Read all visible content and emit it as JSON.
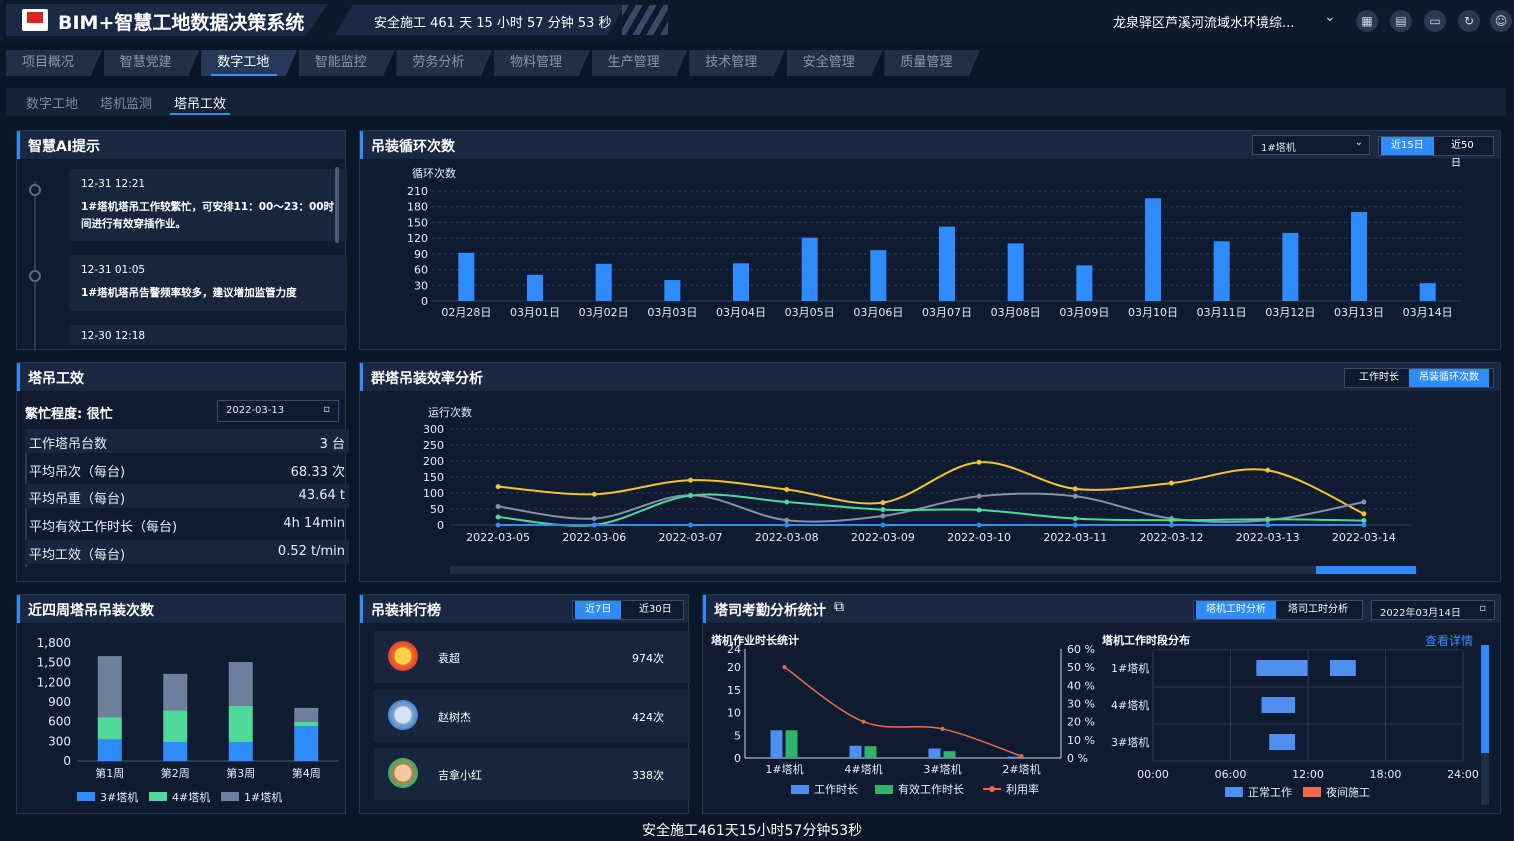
{
  "header": {
    "title": "BIM+智慧工地数据决策系统",
    "safety": "安全施工 461 天 15 小时 57 分钟 53 秒",
    "project": "龙泉驿区芦溪河流域水环境综...",
    "dropdown_icon": "chevron-down-icon",
    "icons": [
      "grid-icon",
      "document-icon",
      "monitor-icon",
      "refresh-icon",
      "user-icon"
    ]
  },
  "nav": {
    "tabs": [
      "项目概况",
      "智慧党建",
      "数字工地",
      "智能监控",
      "劳务分析",
      "物料管理",
      "生产管理",
      "技术管理",
      "安全管理",
      "质量管理"
    ],
    "active": "数字工地"
  },
  "subnav": {
    "tabs": [
      "数字工地",
      "塔机监测",
      "塔吊工效"
    ],
    "active": "塔吊工效"
  },
  "ai": {
    "title": "智慧AI提示",
    "items": [
      {
        "time": "12-31 12:21",
        "text": "1#塔机塔吊工作较繁忙，可安排11：00～23：00时间进行有效穿插作业。"
      },
      {
        "time": "12-31 01:05",
        "text": "1#塔机塔吊告警频率较多，建议增加监管力度"
      },
      {
        "time": "12-30 12:18",
        "text": ""
      }
    ]
  },
  "cycle": {
    "title": "吊装循环次数",
    "select": "1#塔机",
    "btn1": "近15日",
    "btn2": "近50日"
  },
  "efficiency": {
    "title": "塔吊工效",
    "busy_label": "繁忙程度: 很忙",
    "date": "2022-03-13",
    "rows": [
      {
        "k": "工作塔吊台数",
        "v": "3 台"
      },
      {
        "k": "平均吊次（每台)",
        "v": "68.33 次"
      },
      {
        "k": "平均吊重（每台)",
        "v": "43.64 t"
      },
      {
        "k": "平均有效工作时长（每台)",
        "v": "4h 14min"
      },
      {
        "k": "平均工效（每台)",
        "v": "0.52 t/min"
      }
    ]
  },
  "group": {
    "title": "群塔吊装效率分析",
    "btn1": "工作时长",
    "btn2": "吊装循环次数"
  },
  "weekly": {
    "title": "近四周塔吊吊装次数"
  },
  "ranking": {
    "title": "吊装排行榜",
    "btn1": "近7日",
    "btn2": "近30日",
    "items": [
      {
        "name": "袁超",
        "count": "974次"
      },
      {
        "name": "赵树杰",
        "count": "424次"
      },
      {
        "name": "吉拿小红",
        "count": "338次"
      }
    ]
  },
  "attendance": {
    "title": "塔司考勤分析统计",
    "btn1": "塔机工时分析",
    "btn2": "塔司工时分析",
    "date": "2022年03月14日",
    "sub1": "塔机作业时长统计",
    "sub2": "塔机工作时段分布",
    "detail": "查看详情"
  },
  "footer": {
    "safety": "安全施工461天15小时57分钟53秒"
  },
  "chart_data": [
    {
      "type": "bar",
      "id": "cycle",
      "ylabel": "循环次数",
      "ylim": [
        0,
        210
      ],
      "yticks": [
        0,
        30,
        60,
        90,
        120,
        150,
        180,
        210
      ],
      "categories": [
        "02月28日",
        "03月01日",
        "03月02日",
        "03月03日",
        "03月04日",
        "03月05日",
        "03月06日",
        "03月07日",
        "03月08日",
        "03月09日",
        "03月10日",
        "03月11日",
        "03月12日",
        "03月13日",
        "03月14日"
      ],
      "values": [
        92,
        50,
        71,
        40,
        72,
        121,
        97,
        142,
        110,
        68,
        196,
        114,
        130,
        170,
        34
      ],
      "color": "#2f8cff"
    },
    {
      "type": "line",
      "id": "group",
      "ylabel": "运行次数",
      "ylim": [
        0,
        300
      ],
      "yticks": [
        0,
        50,
        100,
        150,
        200,
        250,
        300
      ],
      "categories": [
        "2022-03-05",
        "2022-03-06",
        "2022-03-07",
        "2022-03-08",
        "2022-03-09",
        "2022-03-10",
        "2022-03-11",
        "2022-03-12",
        "2022-03-13",
        "2022-03-14"
      ],
      "series": [
        {
          "values": [
            120,
            96,
            140,
            111,
            70,
            196,
            113,
            131,
            171,
            35
          ],
          "color": "#f5c230"
        },
        {
          "values": [
            58,
            20,
            93,
            15,
            28,
            90,
            90,
            20,
            15,
            72
          ],
          "color": "#8592a6"
        },
        {
          "values": [
            25,
            0,
            92,
            72,
            48,
            47,
            20,
            15,
            18,
            14
          ],
          "color": "#4fd89a"
        },
        {
          "values": [
            0,
            0,
            0,
            0,
            0,
            0,
            0,
            0,
            0,
            0
          ],
          "color": "#2f8cff"
        }
      ]
    },
    {
      "type": "bar",
      "id": "weekly",
      "stacked": true,
      "ylim": [
        0,
        1800
      ],
      "yticks": [
        0,
        300,
        600,
        900,
        1200,
        1500,
        1800
      ],
      "categories": [
        "第1周",
        "第2周",
        "第3周",
        "第4周"
      ],
      "series": [
        {
          "name": "3#塔机",
          "values": [
            330,
            290,
            290,
            530
          ],
          "color": "#2f8cff"
        },
        {
          "name": "4#塔机",
          "values": [
            340,
            480,
            550,
            70
          ],
          "color": "#4fd89a"
        },
        {
          "name": "1#塔机",
          "values": [
            930,
            560,
            670,
            210
          ],
          "color": "#6e809d"
        }
      ]
    },
    {
      "type": "bar",
      "id": "attendance",
      "ylim": [
        0,
        24
      ],
      "yticks": [
        0,
        5,
        10,
        15,
        20,
        24
      ],
      "y2ticks": [
        "0 %",
        "10 %",
        "20 %",
        "30 %",
        "40 %",
        "50 %",
        "60 %"
      ],
      "categories": [
        "1#塔机",
        "4#塔机",
        "3#塔机",
        "2#塔机"
      ],
      "series": [
        {
          "name": "工作时长",
          "values": [
            6.1,
            2.7,
            2.1,
            0.3
          ],
          "color": "#4f8ff0"
        },
        {
          "name": "有效工作时长",
          "values": [
            6.1,
            2.6,
            1.5,
            0.2
          ],
          "color": "#2fb46c"
        },
        {
          "name": "利用率",
          "values": [
            50,
            20,
            16,
            1
          ],
          "color": "#ef6a45"
        }
      ]
    },
    {
      "type": "bar",
      "id": "timeline",
      "xticks": [
        "00:00",
        "06:00",
        "12:00",
        "18:00",
        "24:00"
      ],
      "categories": [
        "1#塔机",
        "4#塔机",
        "3#塔机"
      ],
      "series": [
        {
          "name": "正常工作",
          "ranges": [
            [
              [
                8,
                12
              ],
              [
                13.7,
                15.7
              ]
            ],
            [
              [
                8.4,
                11
              ]
            ],
            [
              [
                9,
                11
              ]
            ]
          ],
          "color": "#4f8ff0"
        },
        {
          "name": "夜间施工",
          "ranges": [
            [],
            [],
            []
          ],
          "color": "#ef6a45"
        }
      ]
    }
  ]
}
